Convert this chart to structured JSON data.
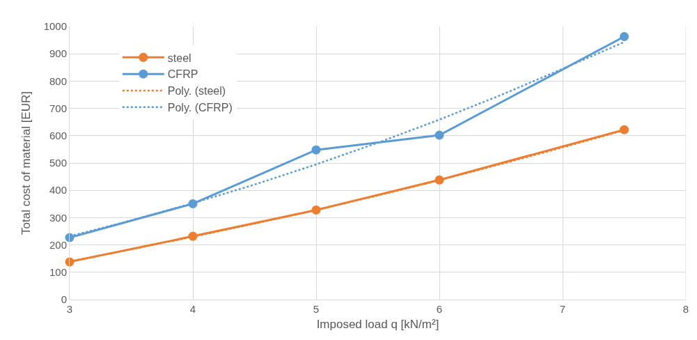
{
  "chart_data": {
    "type": "line",
    "xlabel": "Imposed load q [kN/m²]",
    "ylabel": "Total cost of material [EUR]",
    "xlim": [
      3,
      8
    ],
    "xticks": [
      3,
      4,
      5,
      6,
      7,
      8
    ],
    "ylim": [
      0,
      1000
    ],
    "yticks": [
      0,
      100,
      200,
      300,
      400,
      500,
      600,
      700,
      800,
      900,
      1000
    ],
    "grid": true,
    "legend": "top left",
    "series": [
      {
        "name": "steel",
        "color": "#ed7d31",
        "x": [
          3,
          4,
          5,
          6,
          7.5
        ],
        "values": [
          138,
          232,
          328,
          438,
          622
        ],
        "marker": "circle",
        "line_style": "solid"
      },
      {
        "name": "CFRP",
        "color": "#5b9bd5",
        "x": [
          3,
          4,
          5,
          6,
          7.5
        ],
        "values": [
          227,
          351,
          548,
          602,
          963
        ],
        "marker": "circle",
        "line_style": "solid"
      },
      {
        "name": "Poly. (steel)",
        "color": "#ed7d31",
        "x": [
          3,
          3.5,
          4,
          4.5,
          5,
          5.5,
          6,
          6.5,
          7,
          7.5
        ],
        "values": [
          140,
          184,
          230,
          278,
          328,
          381,
          437,
          496,
          557,
          620
        ],
        "marker": "none",
        "line_style": "dotted"
      },
      {
        "name": "Poly. (CFRP)",
        "color": "#5b9bd5",
        "x": [
          3,
          3.5,
          4,
          4.5,
          5,
          5.5,
          6,
          6.5,
          7,
          7.5
        ],
        "values": [
          232,
          290,
          353,
          421,
          495,
          574,
          659,
          749,
          845,
          943
        ],
        "marker": "none",
        "line_style": "dotted"
      }
    ]
  }
}
